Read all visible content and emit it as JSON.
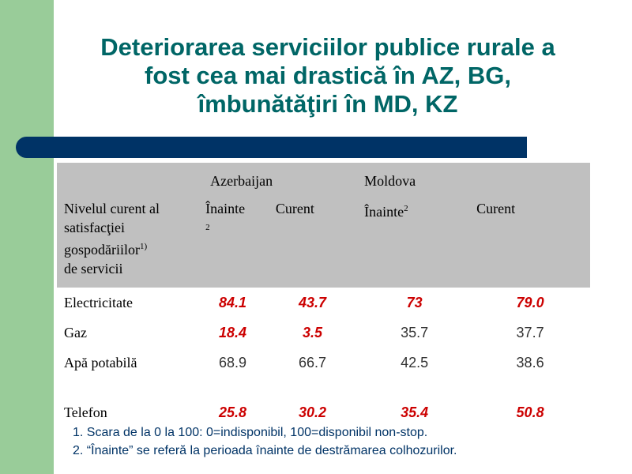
{
  "title_lines": [
    "Deteriorarea serviciilor publice rurale a",
    "fost cea mai drastică în AZ, BG,",
    "îmbunătăţiri în MD, KZ"
  ],
  "table": {
    "countries": [
      "Azerbaijan",
      "Moldova"
    ],
    "row_header": [
      "Nivelul curent al",
      "satisfacţiei",
      "gospodăriilor",
      "de servicii"
    ],
    "row_header_sup": "1)",
    "col_before": "Înainte",
    "col_before_sup": "2",
    "col_current": "Curent",
    "rows": [
      {
        "label": "Electricitate",
        "az_before": "84.1",
        "az_current": "43.7",
        "md_before": "73",
        "md_current": "79.0"
      },
      {
        "label": "Gaz",
        "az_before": "18.4",
        "az_current": "3.5",
        "md_before": "35.7",
        "md_current": "37.7"
      },
      {
        "label": "Apă potabilă",
        "az_before": "68.9",
        "az_current": "66.7",
        "md_before": "42.5",
        "md_current": "38.6"
      },
      {
        "label": "Telefon",
        "az_before": "25.8",
        "az_current": "30.2",
        "md_before": "35.4",
        "md_current": "50.8"
      }
    ]
  },
  "notes": [
    "1. Scara de la 0 la 100: 0=indisponibil, 100=disponibil non-stop.",
    "2. “Înainte” se referă la perioada înainte de destrămarea colhozurilor."
  ],
  "colors": {
    "title": "#006666",
    "highlight": "#cc0000",
    "bar": "#003366",
    "green": "#99cc99",
    "header_bg": "#c0c0c0"
  }
}
